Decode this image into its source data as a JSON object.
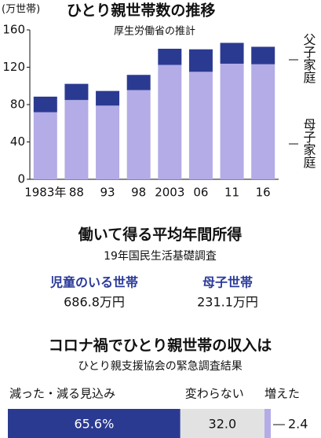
{
  "chart_data": [
    {
      "type": "bar",
      "stacked": true,
      "title": "ひとり親世帯数の推移",
      "subtitle": "厚生労働省の推計",
      "y_label": "(万世帯)",
      "categories": [
        "1983年",
        "88",
        "93",
        "98",
        "2003",
        "06",
        "11",
        "16"
      ],
      "series": [
        {
          "name": "母子家庭",
          "color": "#b3ace6",
          "values": [
            71.8,
            84.9,
            78.9,
            95.5,
            122.5,
            115.1,
            123.8,
            123.2
          ]
        },
        {
          "name": "父子家庭",
          "color": "#2b3a91",
          "values": [
            16.7,
            17.3,
            15.7,
            16.3,
            17.3,
            24.1,
            22.3,
            18.7
          ]
        }
      ],
      "ylim": [
        0,
        160
      ],
      "yticks": [
        0,
        40,
        80,
        120,
        160
      ]
    },
    {
      "type": "hbar100",
      "title": "コロナ禍でひとり親世帯の収入は",
      "subtitle": "ひとり親支援協会の緊急調査結果",
      "series": [
        {
          "name": "減った・減る見込み",
          "color": "#2b3a91",
          "values": [
            65.6
          ],
          "value_labels": [
            "65.6%"
          ]
        },
        {
          "name": "変わらない",
          "color": "#e2e2e2",
          "values": [
            32.0
          ],
          "value_labels": [
            "32.0"
          ]
        },
        {
          "name": "増えた",
          "color": "#b3ace6",
          "values": [
            2.4
          ],
          "value_labels": [
            "2.4"
          ]
        }
      ]
    }
  ],
  "income": {
    "title": "働いて得る平均年間所得",
    "subtitle": "19年国民生活基礎調査",
    "items": [
      {
        "label": "児童のいる世帯",
        "value": "686.8万円"
      },
      {
        "label": "母子世帯",
        "value": "231.1万円"
      }
    ]
  }
}
